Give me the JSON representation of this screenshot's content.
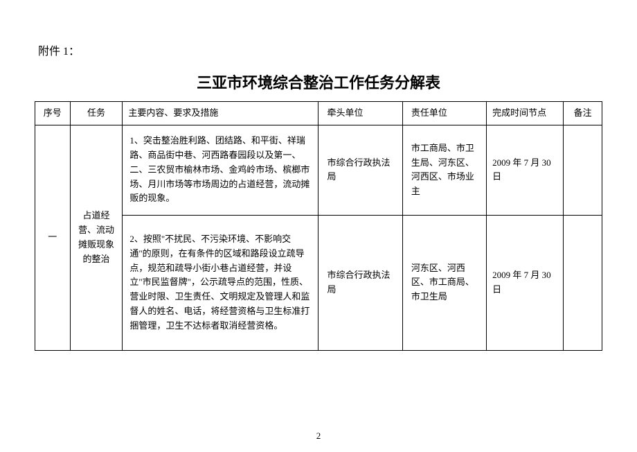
{
  "attachment_label": "附件 1：",
  "title": "三亚市环境综合整治工作任务分解表",
  "columns": {
    "seq": "序号",
    "task": "任务",
    "content": "主要内容、要求及措施",
    "lead": "牵头单位",
    "resp": "责任单位",
    "time": "完成时间节点",
    "note": "备注"
  },
  "rows": [
    {
      "seq": "一",
      "task": "占道经营、流动摊贩现象的整治",
      "content": "1、突击整治胜利路、团结路、和平街、祥瑞路、商品街中巷、河西路春园段以及第一、二、三农贸市榆林市场、金鸡岭市场、槟榔市场、月川市场等市场周边的占道经营，流动摊贩的现象。",
      "lead": "市综合行政执法局",
      "resp": "市工商局、市卫生局、河东区、河西区、市场业主",
      "time": "2009 年 7 月 30 日",
      "note": ""
    },
    {
      "content": "2、按照\"不扰民、不污染环境、不影响交通\"的原则，在有条件的区域和路段设立疏导点，规范和疏导小街小巷占道经营，并设立\"市民监督牌\"，公示疏导点的范围，性质、营业时限、卫生责任、文明规定及管理人和监督人的姓名、电话，将经营资格与卫生标准打捆管理，卫生不达标者取消经营资格。",
      "lead": "市综合行政执法局",
      "resp": "河东区、河西区、市工商局、市卫生局",
      "time": "2009 年 7 月 30 日",
      "note": ""
    }
  ],
  "page_number": "2"
}
